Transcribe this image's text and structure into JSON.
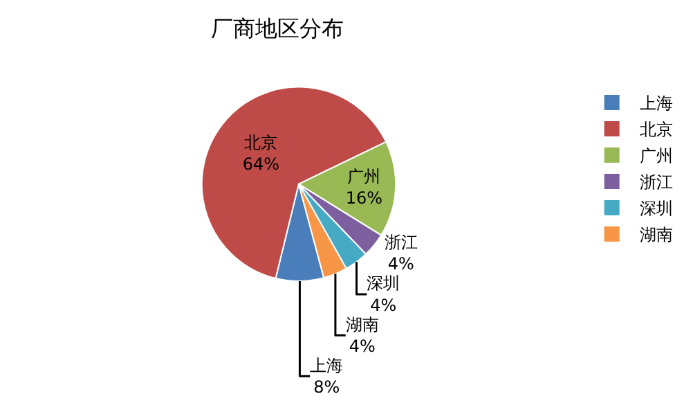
{
  "chart_data": {
    "type": "pie",
    "title": "厂商地区分布",
    "categories": [
      "上海",
      "北京",
      "广州",
      "浙江",
      "深圳",
      "湖南"
    ],
    "values": [
      8,
      64,
      16,
      4,
      4,
      4
    ],
    "value_labels": [
      "8%",
      "64%",
      "16%",
      "4%",
      "4%",
      "4%"
    ],
    "colors": [
      "#4a7ebb",
      "#be4b48",
      "#98b954",
      "#7d5fa0",
      "#46aac5",
      "#f79646"
    ],
    "legend": "right"
  }
}
